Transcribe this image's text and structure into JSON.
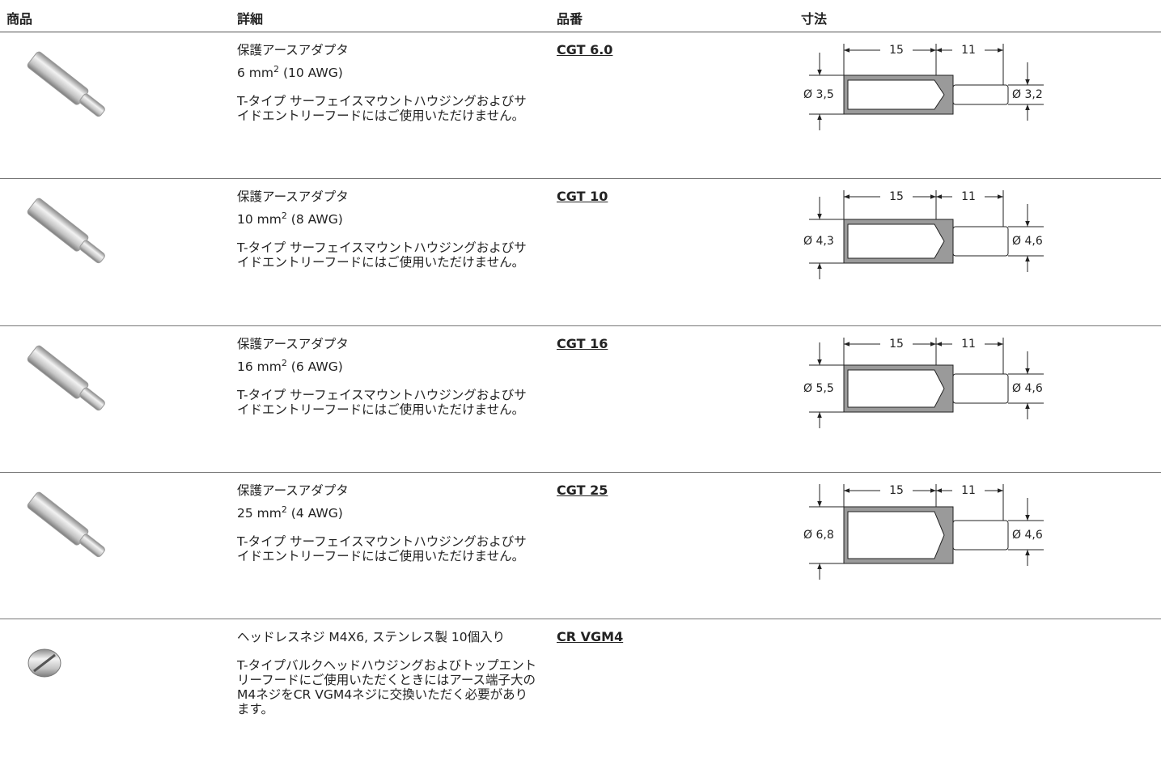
{
  "header": [
    "商品",
    "詳細",
    "品番",
    "寸法"
  ],
  "rows": [
    {
      "title": "保護アースアダプタ",
      "size": "6 mm",
      "sup": "2",
      "awg": "(10 AWG)",
      "note": "T-タイプ サーフェイスマウントハウジングおよびサイドエントリーフードにはご使用いただけません。",
      "part": "CGT 6.0",
      "dims": {
        "length1": "15",
        "length2": "11",
        "d1": "Ø 3,5",
        "d2": "Ø 3,2"
      }
    },
    {
      "title": "保護アースアダプタ",
      "size": "10 mm",
      "sup": "2",
      "awg": "(8 AWG)",
      "note": "T-タイプ サーフェイスマウントハウジングおよびサイドエントリーフードにはご使用いただけません。",
      "part": "CGT 10",
      "dims": {
        "length1": "15",
        "length2": "11",
        "d1": "Ø 4,3",
        "d2": "Ø 4,6"
      }
    },
    {
      "title": "保護アースアダプタ",
      "size": "16 mm",
      "sup": "2",
      "awg": "(6 AWG)",
      "note": "T-タイプ サーフェイスマウントハウジングおよびサイドエントリーフードにはご使用いただけません。",
      "part": "CGT 16",
      "dims": {
        "length1": "15",
        "length2": "11",
        "d1": "Ø 5,5",
        "d2": "Ø 4,6"
      }
    },
    {
      "title": "保護アースアダプタ",
      "size": "25 mm",
      "sup": "2",
      "awg": "(4 AWG)",
      "note": "T-タイプ サーフェイスマウントハウジングおよびサイドエントリーフードにはご使用いただけません。",
      "part": "CGT 25",
      "dims": {
        "length1": "15",
        "length2": "11",
        "d1": "Ø 6,8",
        "d2": "Ø 4,6"
      }
    },
    {
      "title": "ヘッドレスネジ M4X6, ステンレス製 10個入り",
      "note": "T-タイプバルクヘッドハウジングおよびトップエントリーフードにご使用いただくときにはアース端子大のM4ネジをCR VGM4ネジに交換いただく必要があります。",
      "part": "CR VGM4"
    }
  ]
}
